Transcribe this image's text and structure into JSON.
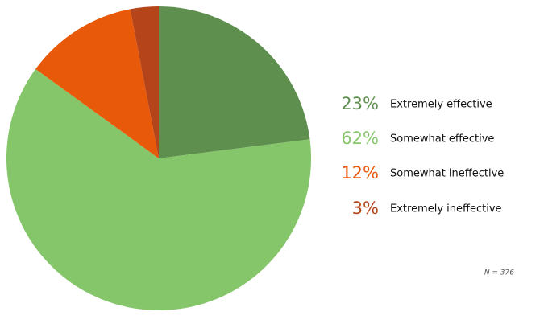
{
  "chart_data": {
    "type": "pie",
    "categories": [
      "Extremely effective",
      "Somewhat effective",
      "Somewhat ineffective",
      "Extremely ineffective"
    ],
    "values": [
      23,
      62,
      12,
      3
    ],
    "value_labels": [
      "23%",
      "62%",
      "12%",
      "3%"
    ],
    "colors": [
      "#5f8f4f",
      "#86c66a",
      "#e85a0a",
      "#b5441a"
    ],
    "note": "N = 376"
  }
}
